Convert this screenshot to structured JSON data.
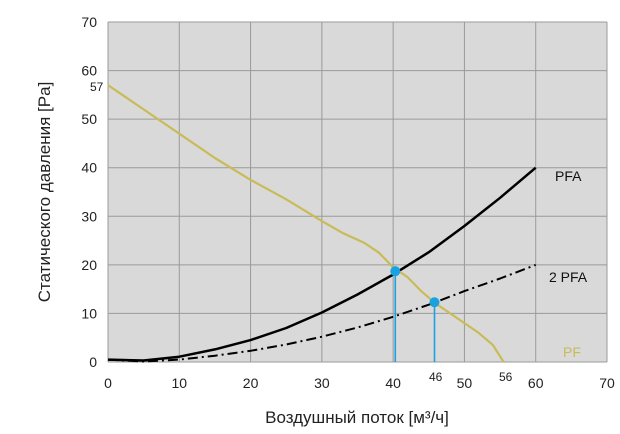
{
  "chart_data": {
    "type": "line",
    "xlabel": "Воздушный поток [м³/ч]",
    "ylabel": "Статического давления [Pa]",
    "xlim": [
      0,
      70
    ],
    "ylim": [
      0,
      70
    ],
    "x_ticks": [
      "0",
      "10",
      "20",
      "30",
      "40",
      "50",
      "60",
      "70"
    ],
    "y_ticks": [
      "0",
      "10",
      "20",
      "30",
      "40",
      "50",
      "60",
      "70"
    ],
    "grid": true,
    "extra_labels": {
      "y_57": "57",
      "x_46": "46",
      "x_56": "56"
    },
    "series": [
      {
        "name": "PFA",
        "color": "#000000",
        "style": "solid",
        "x": [
          0,
          5,
          10,
          15,
          20,
          25,
          30,
          35,
          40,
          45,
          50,
          55,
          60
        ],
        "y": [
          0.5,
          0.3,
          1.1,
          2.6,
          4.5,
          7.0,
          10.2,
          13.9,
          18.0,
          22.6,
          28.0,
          33.8,
          40.0
        ]
      },
      {
        "name": "2 PFA",
        "color": "#000000",
        "style": "dashdot",
        "x": [
          0,
          5,
          10,
          15,
          20,
          25,
          30,
          35,
          40,
          45,
          50,
          55,
          60
        ],
        "y": [
          0.5,
          0.1,
          0.5,
          1.3,
          2.3,
          3.6,
          5.2,
          7.1,
          9.3,
          11.8,
          14.6,
          17.2,
          20.0
        ]
      },
      {
        "name": "PF",
        "color": "#c8bb58",
        "style": "solid",
        "x": [
          0,
          5,
          10,
          15,
          20,
          25,
          30,
          33,
          36,
          38,
          40,
          42,
          44,
          46,
          48,
          50,
          52,
          54,
          55.5
        ],
        "y": [
          57,
          52,
          47,
          42,
          37.5,
          33.5,
          29,
          26.5,
          24.5,
          22.5,
          19.5,
          17.5,
          14.5,
          12,
          10,
          8,
          6,
          3.5,
          0
        ]
      }
    ],
    "points": [
      {
        "x": 40.3,
        "y": 18.7,
        "color": "#1aa1e0"
      },
      {
        "x": 45.8,
        "y": 12.3,
        "color": "#1aa1e0"
      }
    ]
  }
}
